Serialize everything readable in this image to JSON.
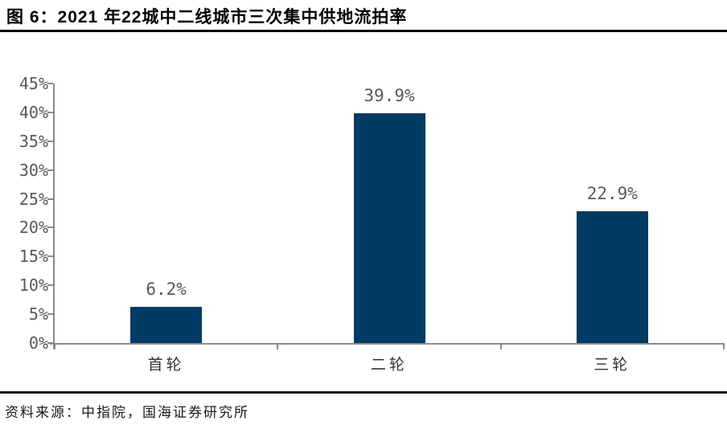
{
  "header": {
    "title": "图 6：2021 年22城中二线城市三次集中供地流拍率"
  },
  "footer": {
    "source": "资料来源：中指院，国海证券研究所"
  },
  "colors": {
    "bar": "#013A63",
    "axis": "#8a8a8a",
    "ytick_label": "#595959",
    "value_label": "#595959",
    "category_label": "#333333",
    "rule": "#000000"
  },
  "chart_data": {
    "type": "bar",
    "categories": [
      "首轮",
      "二轮",
      "三轮"
    ],
    "values": [
      6.2,
      39.9,
      22.9
    ],
    "value_labels": [
      "6.2%",
      "39.9%",
      "22.9%"
    ],
    "title": "",
    "xlabel": "",
    "ylabel": "",
    "ylim": [
      0,
      45
    ],
    "ytick_step": 5,
    "ytick_labels": [
      "0%",
      "5%",
      "10%",
      "15%",
      "20%",
      "25%",
      "30%",
      "35%",
      "40%",
      "45%"
    ],
    "grid": false,
    "legend": "none"
  }
}
